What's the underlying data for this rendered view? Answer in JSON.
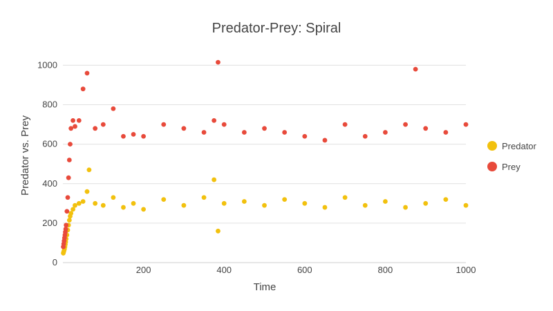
{
  "chart_data": {
    "type": "scatter",
    "title": "Predator-Prey: Spiral",
    "xlabel": "Time",
    "ylabel": "Predator vs. Prey",
    "xlim": [
      0,
      1000
    ],
    "ylim": [
      0,
      1040
    ],
    "x_ticks": [
      200,
      400,
      600,
      800,
      1000
    ],
    "y_ticks": [
      0,
      200,
      400,
      600,
      800,
      1000
    ],
    "grid": true,
    "legend_position": "right",
    "series": [
      {
        "name": "Predator",
        "color": "#f2c10e",
        "x_range": [
          1,
          1000
        ],
        "point_count": 1000,
        "values": [
          [
            1,
            48
          ],
          [
            2,
            55
          ],
          [
            3,
            62
          ],
          [
            4,
            70
          ],
          [
            5,
            80
          ],
          [
            6,
            92
          ],
          [
            7,
            105
          ],
          [
            8,
            120
          ],
          [
            10,
            140
          ],
          [
            12,
            165
          ],
          [
            14,
            190
          ],
          [
            16,
            215
          ],
          [
            18,
            235
          ],
          [
            20,
            250
          ],
          [
            25,
            270
          ],
          [
            30,
            290
          ],
          [
            40,
            300
          ],
          [
            50,
            310
          ],
          [
            60,
            360
          ],
          [
            65,
            470
          ],
          [
            80,
            300
          ],
          [
            100,
            290
          ],
          [
            125,
            330
          ],
          [
            150,
            280
          ],
          [
            175,
            300
          ],
          [
            200,
            270
          ],
          [
            250,
            320
          ],
          [
            300,
            290
          ],
          [
            350,
            330
          ],
          [
            375,
            420
          ],
          [
            385,
            160
          ],
          [
            400,
            300
          ],
          [
            450,
            310
          ],
          [
            500,
            290
          ],
          [
            550,
            320
          ],
          [
            600,
            300
          ],
          [
            650,
            280
          ],
          [
            700,
            330
          ],
          [
            750,
            290
          ],
          [
            800,
            310
          ],
          [
            850,
            280
          ],
          [
            900,
            300
          ],
          [
            950,
            320
          ],
          [
            1000,
            290
          ]
        ]
      },
      {
        "name": "Prey",
        "color": "#e84a3b",
        "x_range": [
          1,
          1000
        ],
        "point_count": 1000,
        "values": [
          [
            1,
            80
          ],
          [
            2,
            95
          ],
          [
            3,
            110
          ],
          [
            4,
            125
          ],
          [
            5,
            140
          ],
          [
            6,
            155
          ],
          [
            7,
            170
          ],
          [
            8,
            190
          ],
          [
            10,
            260
          ],
          [
            12,
            330
          ],
          [
            14,
            430
          ],
          [
            16,
            520
          ],
          [
            18,
            600
          ],
          [
            20,
            680
          ],
          [
            25,
            720
          ],
          [
            30,
            690
          ],
          [
            40,
            720
          ],
          [
            50,
            880
          ],
          [
            60,
            960
          ],
          [
            80,
            680
          ],
          [
            100,
            700
          ],
          [
            125,
            780
          ],
          [
            150,
            640
          ],
          [
            175,
            650
          ],
          [
            200,
            640
          ],
          [
            250,
            700
          ],
          [
            300,
            680
          ],
          [
            350,
            660
          ],
          [
            375,
            720
          ],
          [
            385,
            1015
          ],
          [
            400,
            700
          ],
          [
            450,
            660
          ],
          [
            500,
            680
          ],
          [
            550,
            660
          ],
          [
            600,
            640
          ],
          [
            650,
            620
          ],
          [
            700,
            700
          ],
          [
            750,
            640
          ],
          [
            800,
            660
          ],
          [
            850,
            700
          ],
          [
            875,
            980
          ],
          [
            900,
            680
          ],
          [
            950,
            660
          ],
          [
            1000,
            700
          ]
        ]
      }
    ]
  }
}
